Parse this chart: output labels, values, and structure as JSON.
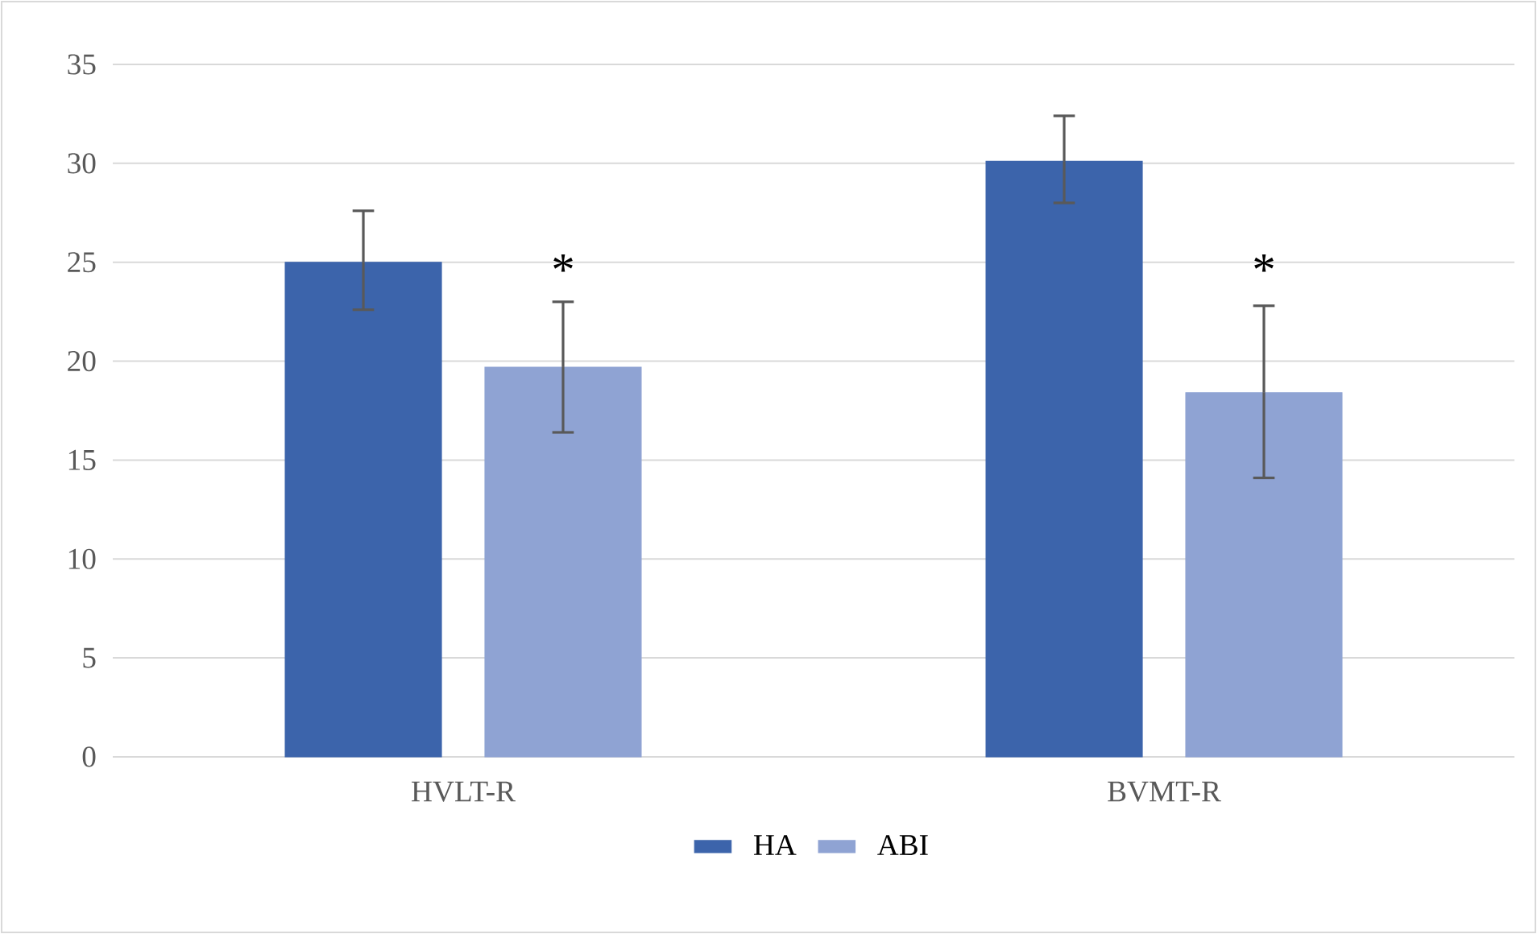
{
  "chart_data": {
    "type": "bar",
    "categories": [
      "HVLT-R",
      "BVMT-R"
    ],
    "series": [
      {
        "name": "HA",
        "color": "#3c64ab",
        "values": [
          25.0,
          30.1
        ],
        "errors": [
          [
            22.6,
            27.6
          ],
          [
            28.0,
            32.4
          ]
        ]
      },
      {
        "name": "ABI",
        "color": "#8fa3d3",
        "values": [
          19.7,
          18.4
        ],
        "errors": [
          [
            16.4,
            23.0
          ],
          [
            14.1,
            22.8
          ]
        ]
      }
    ],
    "ylim": [
      0,
      35
    ],
    "yticks": [
      0,
      5,
      10,
      15,
      20,
      25,
      30,
      35
    ],
    "grid": "y",
    "legend": "bottom",
    "annotations": [
      "*",
      "*"
    ]
  }
}
